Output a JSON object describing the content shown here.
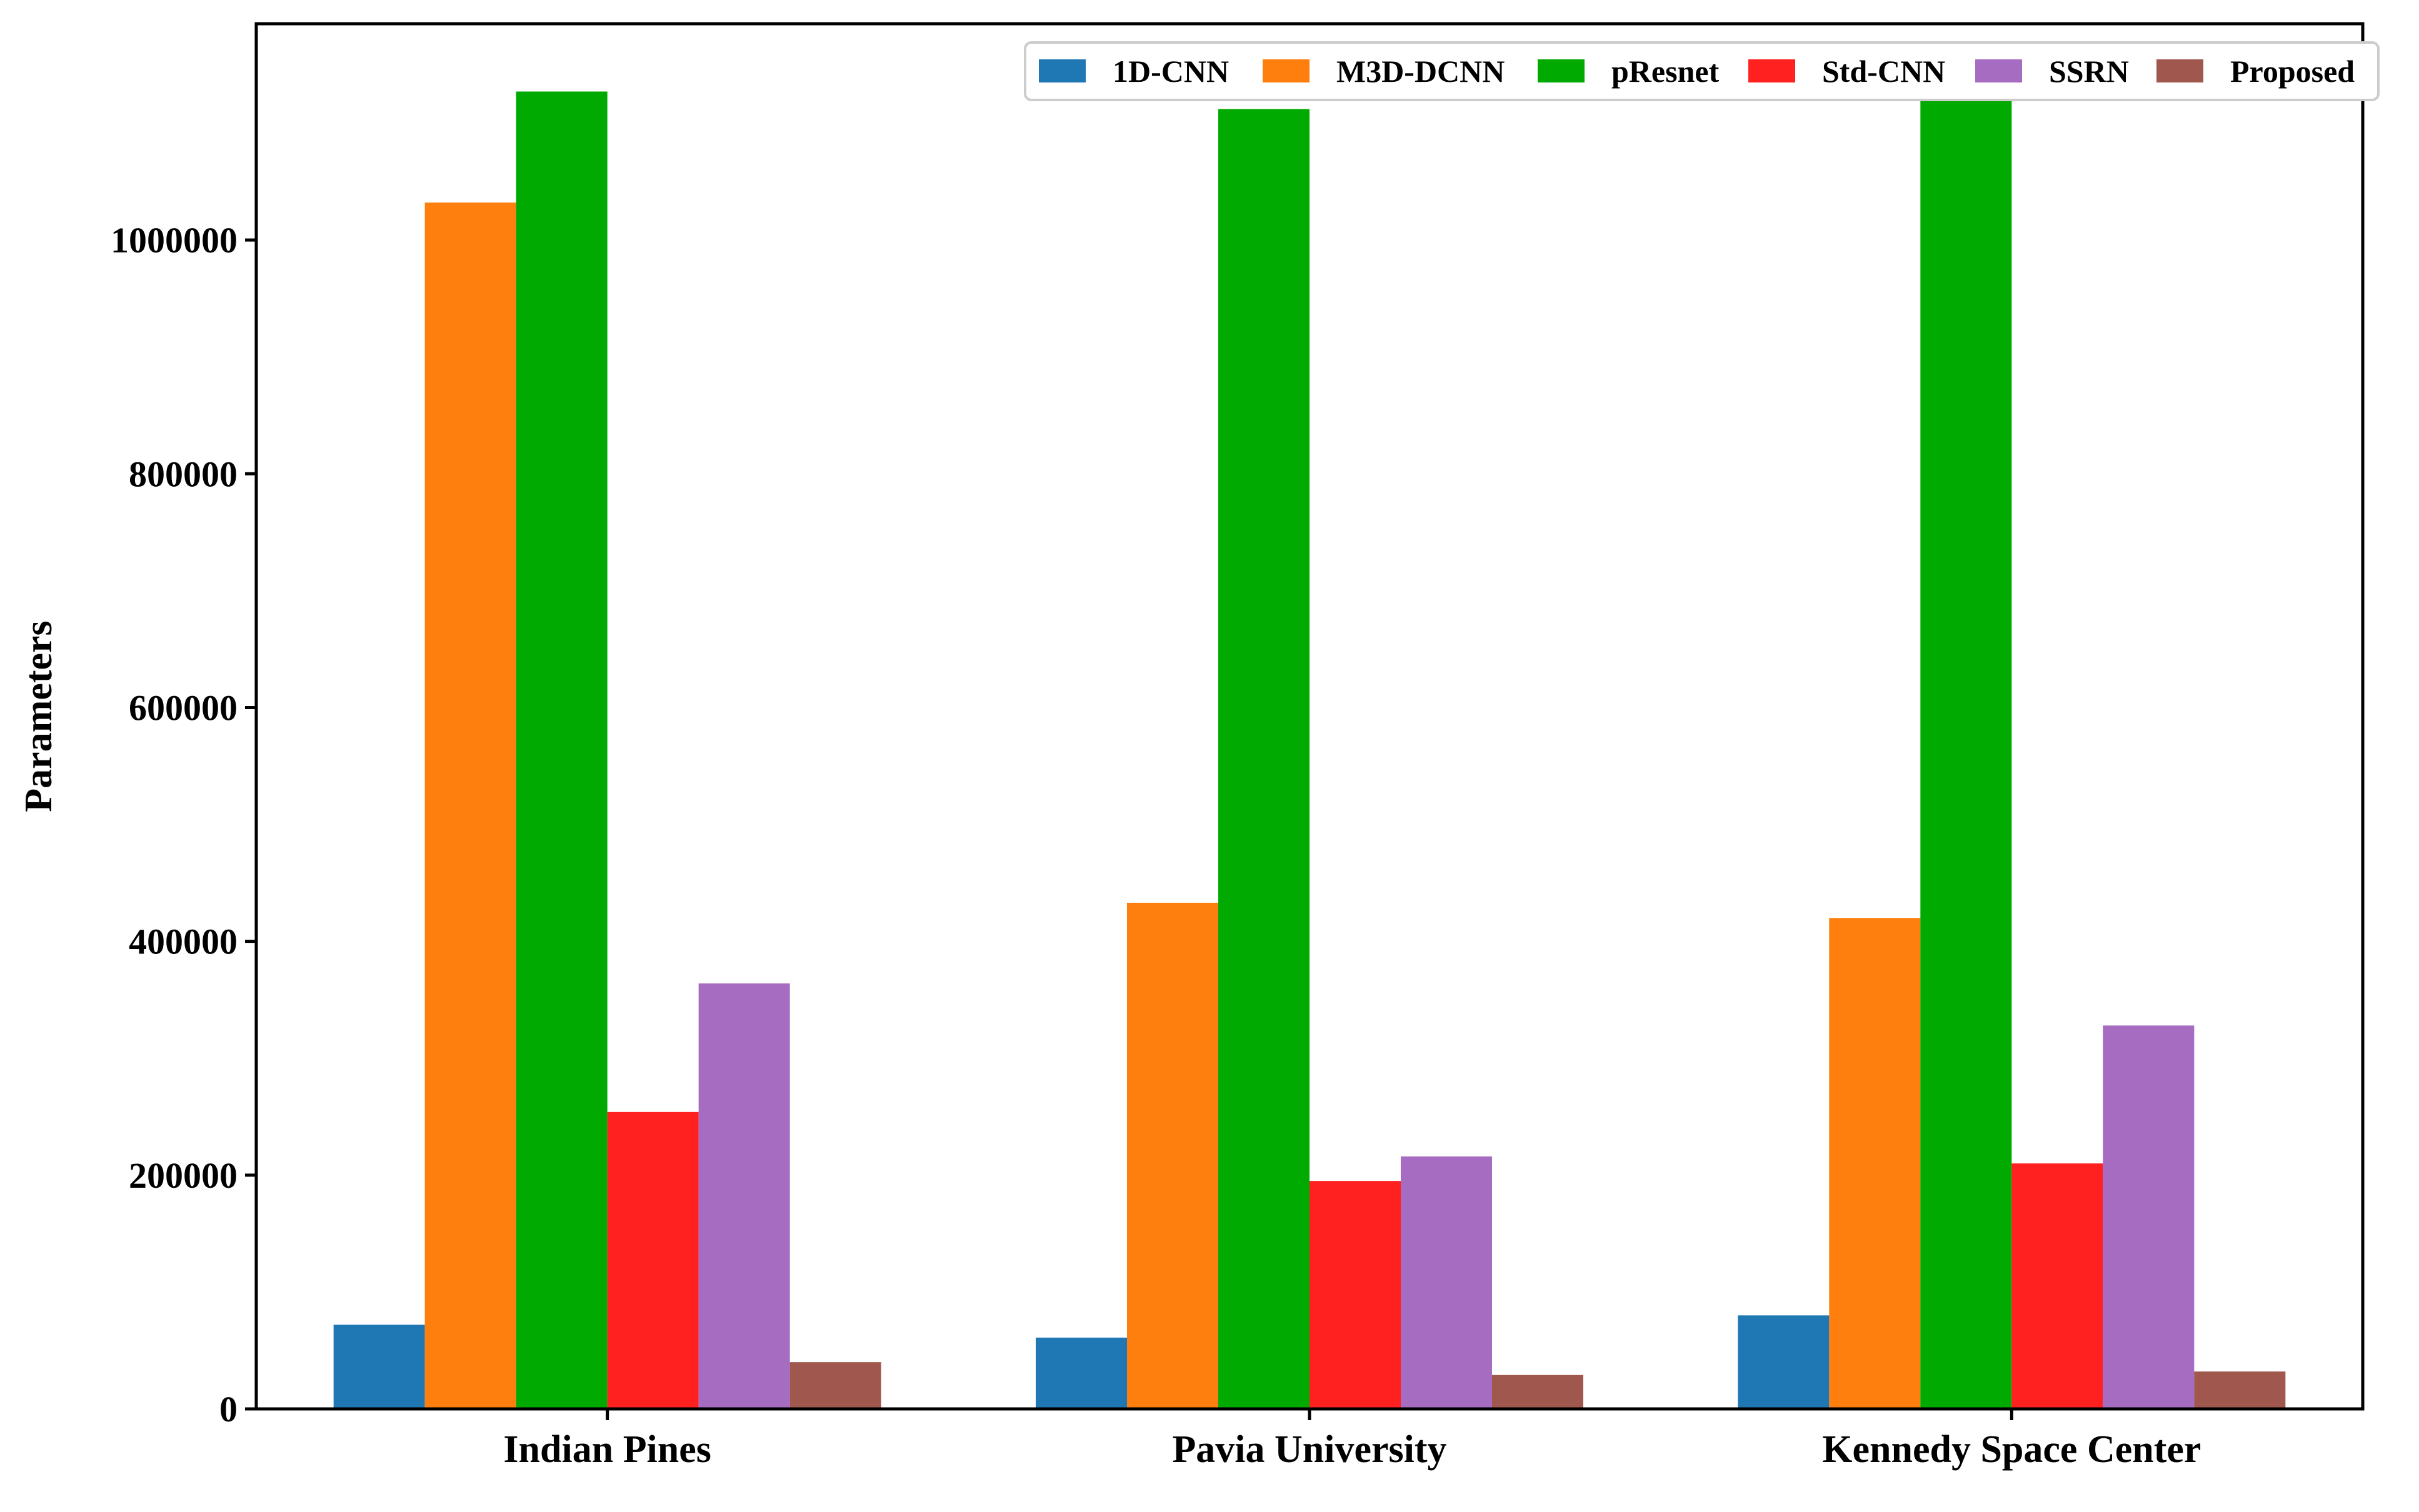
{
  "chart_data": {
    "type": "bar",
    "ylabel": "Parameters",
    "xlabel": "",
    "ylim": [
      0,
      1185000
    ],
    "y_ticks": [
      0,
      200000,
      400000,
      600000,
      800000,
      1000000
    ],
    "y_tick_labels": [
      "0",
      "200000",
      "400000",
      "600000",
      "800000",
      "1000000"
    ],
    "categories": [
      "Indian Pines",
      "Pavia University",
      "Kennedy Space Center"
    ],
    "legend_position": "top-right",
    "grid": false,
    "series": [
      {
        "name": "1D-CNN",
        "color": "#1f77b4",
        "values": [
          72000,
          61000,
          80000
        ]
      },
      {
        "name": "M3D-DCNN",
        "color": "#ff7f0e",
        "values": [
          1032000,
          433000,
          420000
        ]
      },
      {
        "name": "pResnet",
        "color": "#00aa00",
        "values": [
          1127000,
          1112000,
          1122000
        ]
      },
      {
        "name": "Std-CNN",
        "color": "#ff2020",
        "values": [
          254000,
          195000,
          210000
        ]
      },
      {
        "name": "SSRN",
        "color": "#a56cc1",
        "values": [
          364000,
          216000,
          328000
        ]
      },
      {
        "name": "Proposed",
        "color": "#a0574e",
        "values": [
          40000,
          29000,
          32000
        ]
      }
    ]
  }
}
